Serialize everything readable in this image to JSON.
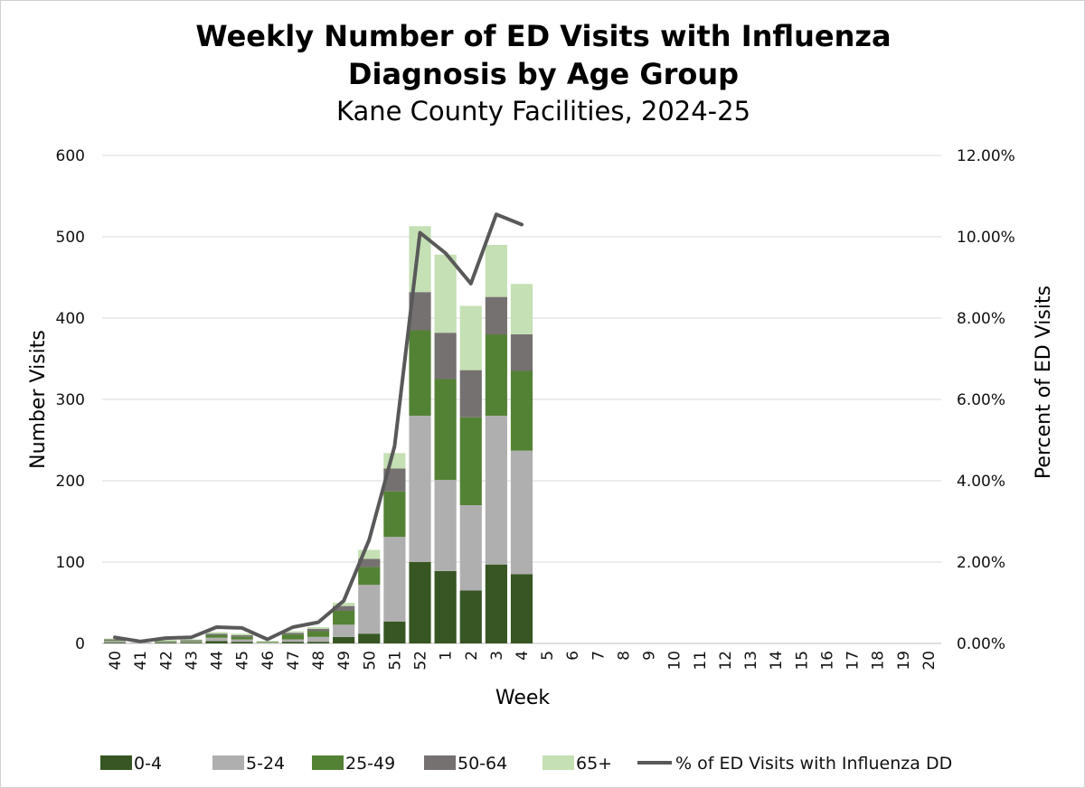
{
  "chart_data": {
    "type": "bar",
    "stacked": true,
    "title": "Weekly Number of ED Visits with Influenza",
    "title_line2": "Diagnosis by Age Group",
    "subtitle": "Kane County Facilities, 2024-25",
    "xlabel": "Week",
    "ylabel": "Number Visits",
    "y2label": "Percent of ED Visits",
    "ylim": [
      0,
      600
    ],
    "yticks": [
      0,
      100,
      200,
      300,
      400,
      500,
      600
    ],
    "y2lim": [
      0,
      12
    ],
    "y2ticks": [
      "0.00%",
      "2.00%",
      "4.00%",
      "6.00%",
      "8.00%",
      "10.00%",
      "12.00%"
    ],
    "grid": true,
    "legend_position": "bottom",
    "categories": [
      "40",
      "41",
      "42",
      "43",
      "44",
      "45",
      "46",
      "47",
      "48",
      "49",
      "50",
      "51",
      "52",
      "1",
      "2",
      "3",
      "4",
      "5",
      "6",
      "7",
      "8",
      "9",
      "10",
      "11",
      "12",
      "13",
      "14",
      "15",
      "16",
      "17",
      "18",
      "19",
      "20"
    ],
    "series": [
      {
        "name": "0-4",
        "color": "#375623",
        "values": [
          1,
          0,
          1,
          1,
          3,
          2,
          0,
          2,
          2,
          8,
          12,
          27,
          100,
          89,
          65,
          97,
          85,
          null,
          null,
          null,
          null,
          null,
          null,
          null,
          null,
          null,
          null,
          null,
          null,
          null,
          null,
          null,
          null
        ]
      },
      {
        "name": "5-24",
        "color": "#b0afaf",
        "values": [
          2,
          1,
          1,
          1,
          4,
          3,
          1,
          3,
          6,
          15,
          60,
          104,
          180,
          112,
          105,
          183,
          152,
          null,
          null,
          null,
          null,
          null,
          null,
          null,
          null,
          null,
          null,
          null,
          null,
          null,
          null,
          null,
          null
        ]
      },
      {
        "name": "25-49",
        "color": "#548235",
        "values": [
          1,
          0,
          1,
          1,
          3,
          3,
          1,
          6,
          7,
          17,
          22,
          56,
          105,
          124,
          108,
          100,
          98,
          null,
          null,
          null,
          null,
          null,
          null,
          null,
          null,
          null,
          null,
          null,
          null,
          null,
          null,
          null,
          null
        ]
      },
      {
        "name": "50-64",
        "color": "#767171",
        "values": [
          1,
          0,
          0,
          1,
          2,
          2,
          0,
          2,
          3,
          6,
          10,
          28,
          47,
          57,
          58,
          46,
          45,
          null,
          null,
          null,
          null,
          null,
          null,
          null,
          null,
          null,
          null,
          null,
          null,
          null,
          null,
          null,
          null
        ]
      },
      {
        "name": "65+",
        "color": "#c5e0b4",
        "values": [
          1,
          0,
          1,
          1,
          2,
          2,
          1,
          2,
          2,
          4,
          11,
          19,
          81,
          96,
          79,
          64,
          62,
          null,
          null,
          null,
          null,
          null,
          null,
          null,
          null,
          null,
          null,
          null,
          null,
          null,
          null,
          null,
          null
        ]
      }
    ],
    "line_series": {
      "name": "% of ED Visits with Influenza DD",
      "color": "#595959",
      "axis": "right",
      "values": [
        0.15,
        0.05,
        0.13,
        0.15,
        0.4,
        0.38,
        0.1,
        0.4,
        0.52,
        1.05,
        2.55,
        4.85,
        10.1,
        9.6,
        8.85,
        10.55,
        10.3,
        null,
        null,
        null,
        null,
        null,
        null,
        null,
        null,
        null,
        null,
        null,
        null,
        null,
        null,
        null,
        null
      ]
    }
  }
}
